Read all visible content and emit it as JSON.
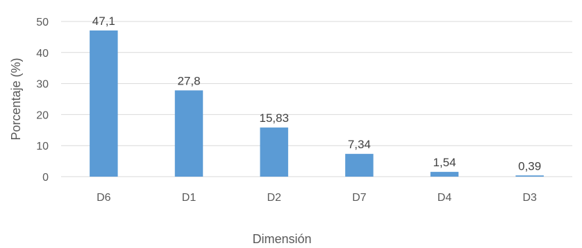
{
  "chart_data": {
    "type": "bar",
    "title": "",
    "xlabel": "Dimensión",
    "ylabel": "Porcentaje (%)",
    "categories": [
      "D6",
      "D1",
      "D2",
      "D7",
      "D4",
      "D3"
    ],
    "values": [
      47.1,
      27.8,
      15.83,
      7.34,
      1.54,
      0.39
    ],
    "data_labels": [
      "47,1",
      "27,8",
      "15,83",
      "7,34",
      "1,54",
      "0,39"
    ],
    "yticks": [
      0,
      10,
      20,
      30,
      40,
      50
    ],
    "ylim": [
      0,
      50
    ],
    "grid": true,
    "legend": "none",
    "colors": {
      "bar": "#5B9BD5",
      "grid": "#D9D9D9"
    }
  }
}
